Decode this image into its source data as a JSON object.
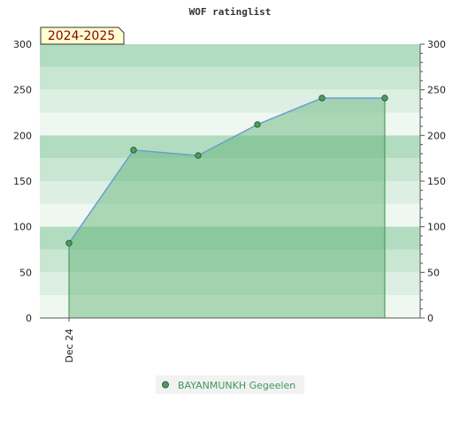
{
  "chart_data": {
    "type": "area",
    "title": "WOF ratinglist",
    "season_label": "2024-2025",
    "ylim": [
      0,
      300
    ],
    "y_ticks": [
      0,
      50,
      100,
      150,
      200,
      250,
      300
    ],
    "x_tick_labels": [
      {
        "label": "Dec 24",
        "index": 0
      }
    ],
    "series": [
      {
        "name": "BAYANMUNKH Gegeelen",
        "values": [
          82,
          184,
          178,
          212,
          241,
          241
        ]
      }
    ],
    "grid": true,
    "legend_position": "bottom",
    "colors": {
      "band_dark": "#b2dcbf",
      "band_mid": "#c8e6d1",
      "band_light": "#dcefe2",
      "band_lightest": "#eef7f0",
      "area_fill": "#5aaf72",
      "line": "#6a9fd4",
      "marker": "#4f9a61",
      "season_box": "#ffffd0"
    }
  }
}
